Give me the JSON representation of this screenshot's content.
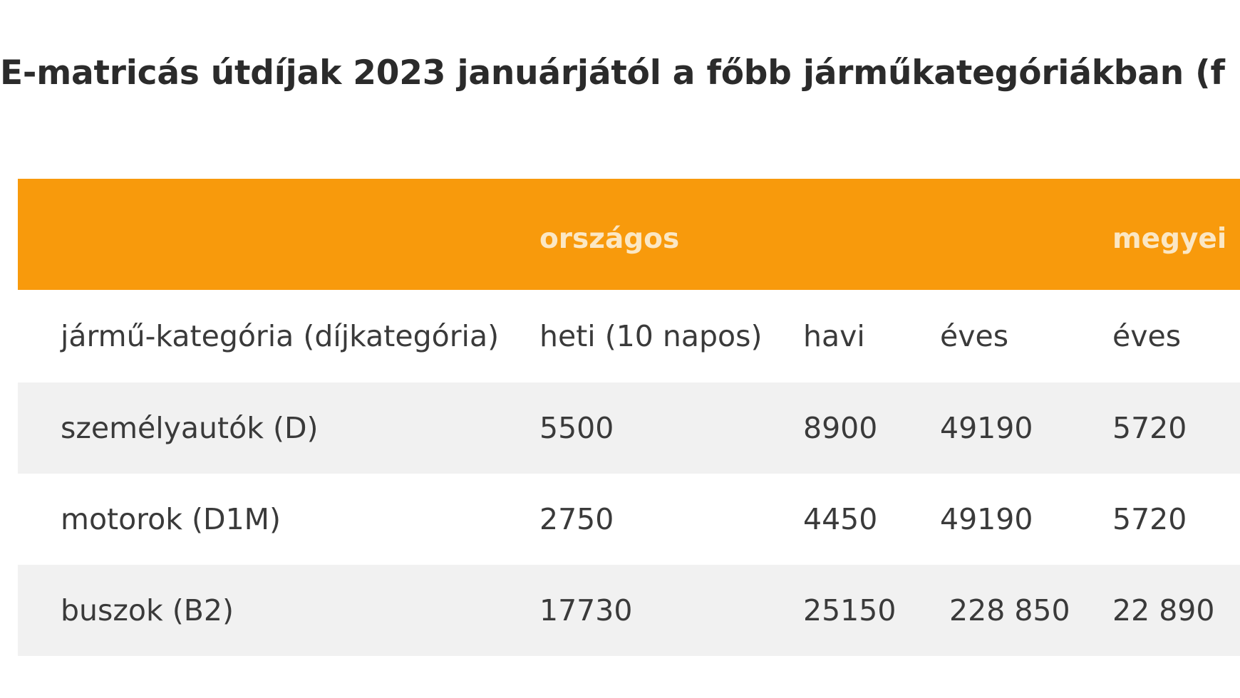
{
  "title": "E-matricás útdíjak 2023 januárjától a főbb járműkategóriákban (f",
  "table": {
    "group_headers": {
      "orszagos": "országos",
      "megyei": "megyei"
    },
    "column_headers": [
      "jármű-kategória (díjkategória)",
      "heti (10 napos)",
      "havi",
      "éves",
      "éves"
    ],
    "rows": [
      [
        "személyautók (D)",
        "5500",
        "8900",
        "49190",
        "5720"
      ],
      [
        "motorok (D1M)",
        "2750",
        "4450",
        "49190",
        "5720"
      ],
      [
        "buszok (B2)",
        "17730",
        "25150",
        " 228 850",
        "22 890"
      ]
    ],
    "colors": {
      "header_band": "#f89a0c",
      "header_text": "#fbe7c4",
      "stripe": "#f1f1f1"
    }
  }
}
